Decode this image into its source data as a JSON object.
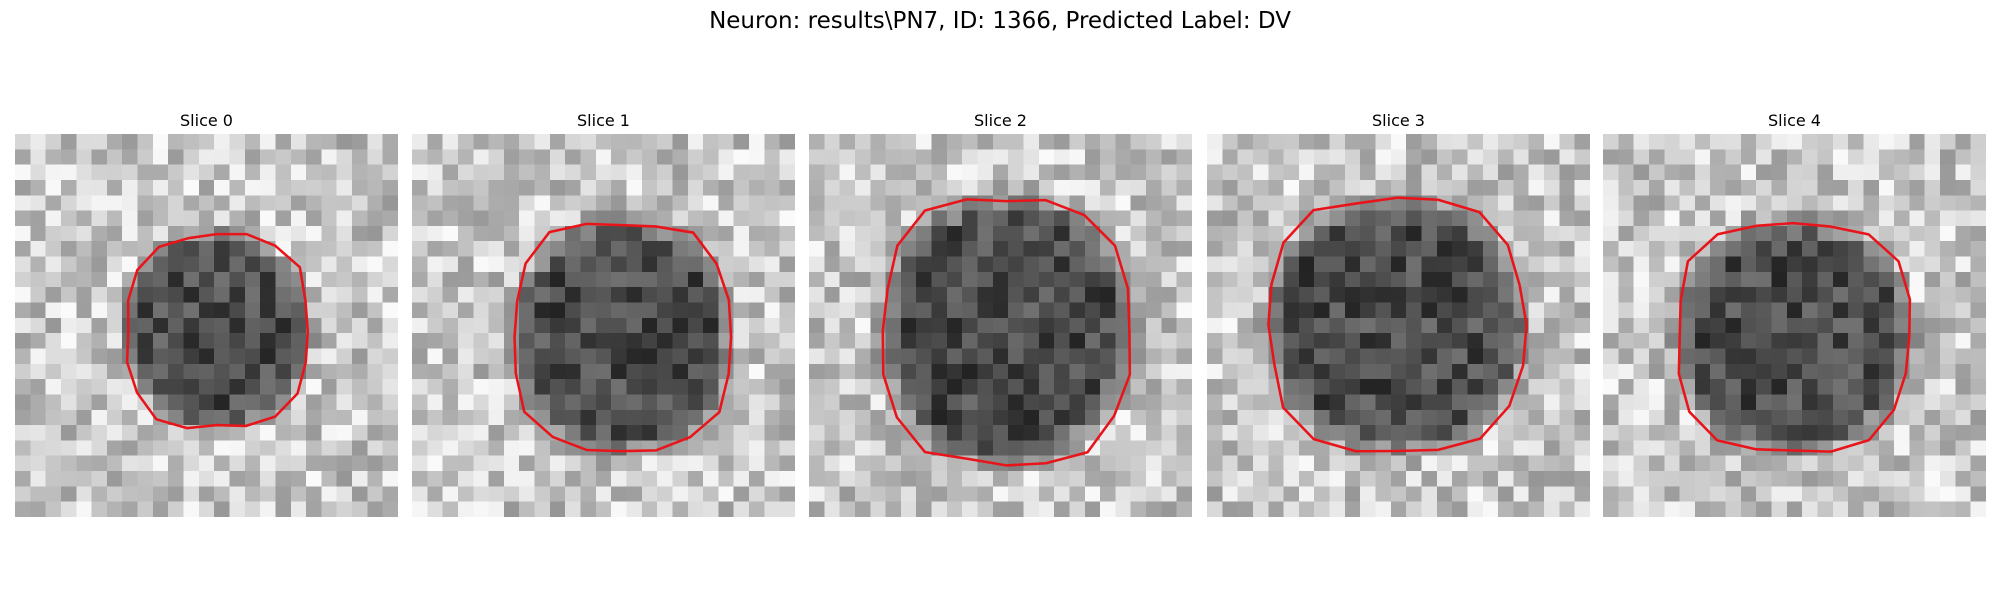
{
  "title": "Neuron: results\\PN7, ID: 1366, Predicted Label: DV",
  "panels": [
    {
      "title": "Slice 0"
    },
    {
      "title": "Slice 1"
    },
    {
      "title": "Slice 2"
    },
    {
      "title": "Slice 3"
    },
    {
      "title": "Slice 4"
    }
  ]
}
